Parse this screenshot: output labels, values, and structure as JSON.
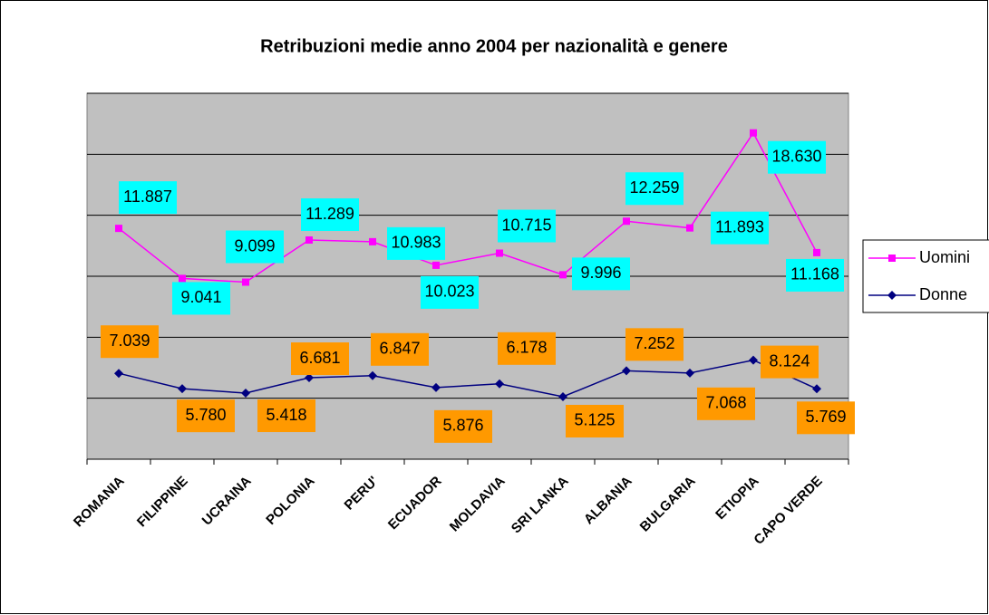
{
  "chart_data": {
    "type": "line",
    "stacked": true,
    "title": "Retribuzioni medie anno 2004 per nazionalità e genere",
    "categories": [
      "ROMANIA",
      "FILIPPINE",
      "UCRAINA",
      "POLONIA",
      "PERU'",
      "ECUADOR",
      "MOLDAVIA",
      "SRI LANKA",
      "ALBANIA",
      "BULGARIA",
      "ETIOPIA",
      "CAPO VERDE"
    ],
    "series": [
      {
        "name": "Donne",
        "color": "#000080",
        "marker": "diamond",
        "label_color": "#ff9900",
        "values": [
          7039,
          5780,
          5418,
          6681,
          6847,
          5876,
          6178,
          5125,
          7252,
          7068,
          8124,
          5769
        ],
        "value_labels": [
          "7.039",
          "5.780",
          "5.418",
          "6.681",
          "6.847",
          "5.876",
          "6.178",
          "5.125",
          "7.252",
          "7.068",
          "8.124",
          "5.769"
        ]
      },
      {
        "name": "Uomini",
        "color": "#ff00ff",
        "marker": "square",
        "label_color": "#00ffff",
        "values": [
          11887,
          9041,
          9099,
          11289,
          10983,
          10023,
          10715,
          9996,
          12259,
          11893,
          18630,
          11168
        ],
        "value_labels": [
          "11.887",
          "9.041",
          "9.099",
          "11.289",
          "10.983",
          "10.023",
          "10.715",
          "9.996",
          "12.259",
          "11.893",
          "18.630",
          "11.168"
        ]
      }
    ],
    "ylim": [
      0,
      30000
    ],
    "yticks": [
      0,
      5000,
      10000,
      15000,
      20000,
      25000,
      30000
    ],
    "grid": true,
    "legend": "right"
  }
}
